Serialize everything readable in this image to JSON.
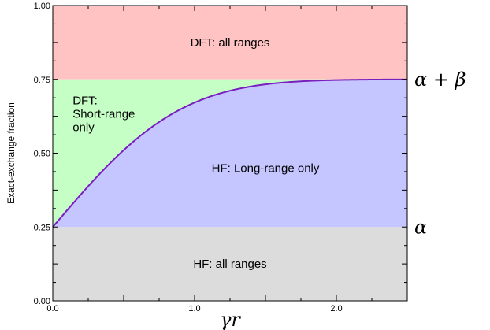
{
  "chart_data": {
    "type": "area",
    "xlabel": "γr",
    "ylabel": "Exact-exchange fraction",
    "xlim": [
      0,
      2.5
    ],
    "ylim": [
      0,
      1
    ],
    "x_ticks": [
      {
        "value": 0,
        "label": "0.0"
      },
      {
        "value": 1,
        "label": "1.0"
      },
      {
        "value": 2,
        "label": "2.0"
      }
    ],
    "y_ticks": [
      {
        "value": 0,
        "label": "0.00"
      },
      {
        "value": 0.25,
        "label": "0.25"
      },
      {
        "value": 0.5,
        "label": "0.50"
      },
      {
        "value": 0.75,
        "label": "0.75"
      },
      {
        "value": 1,
        "label": "1.00"
      }
    ],
    "alpha": 0.25,
    "alpha_plus_beta": 0.75,
    "curve": {
      "formula": "alpha + beta * erf(x)",
      "alpha": 0.25,
      "beta": 0.5,
      "color": "#7a1fbf"
    },
    "regions": [
      {
        "label": "DFT: all ranges",
        "color": "#ffc3c3"
      },
      {
        "label": "DFT:\nShort-range\nonly",
        "color": "#c6ffc6"
      },
      {
        "label": "HF: Long-range only",
        "color": "#c5c5ff"
      },
      {
        "label": "HF: all ranges",
        "color": "#dcdcdc"
      }
    ],
    "right_annotations": [
      {
        "value": 0.75,
        "label": "α + β"
      },
      {
        "value": 0.25,
        "label": "α"
      }
    ],
    "grid": false
  }
}
